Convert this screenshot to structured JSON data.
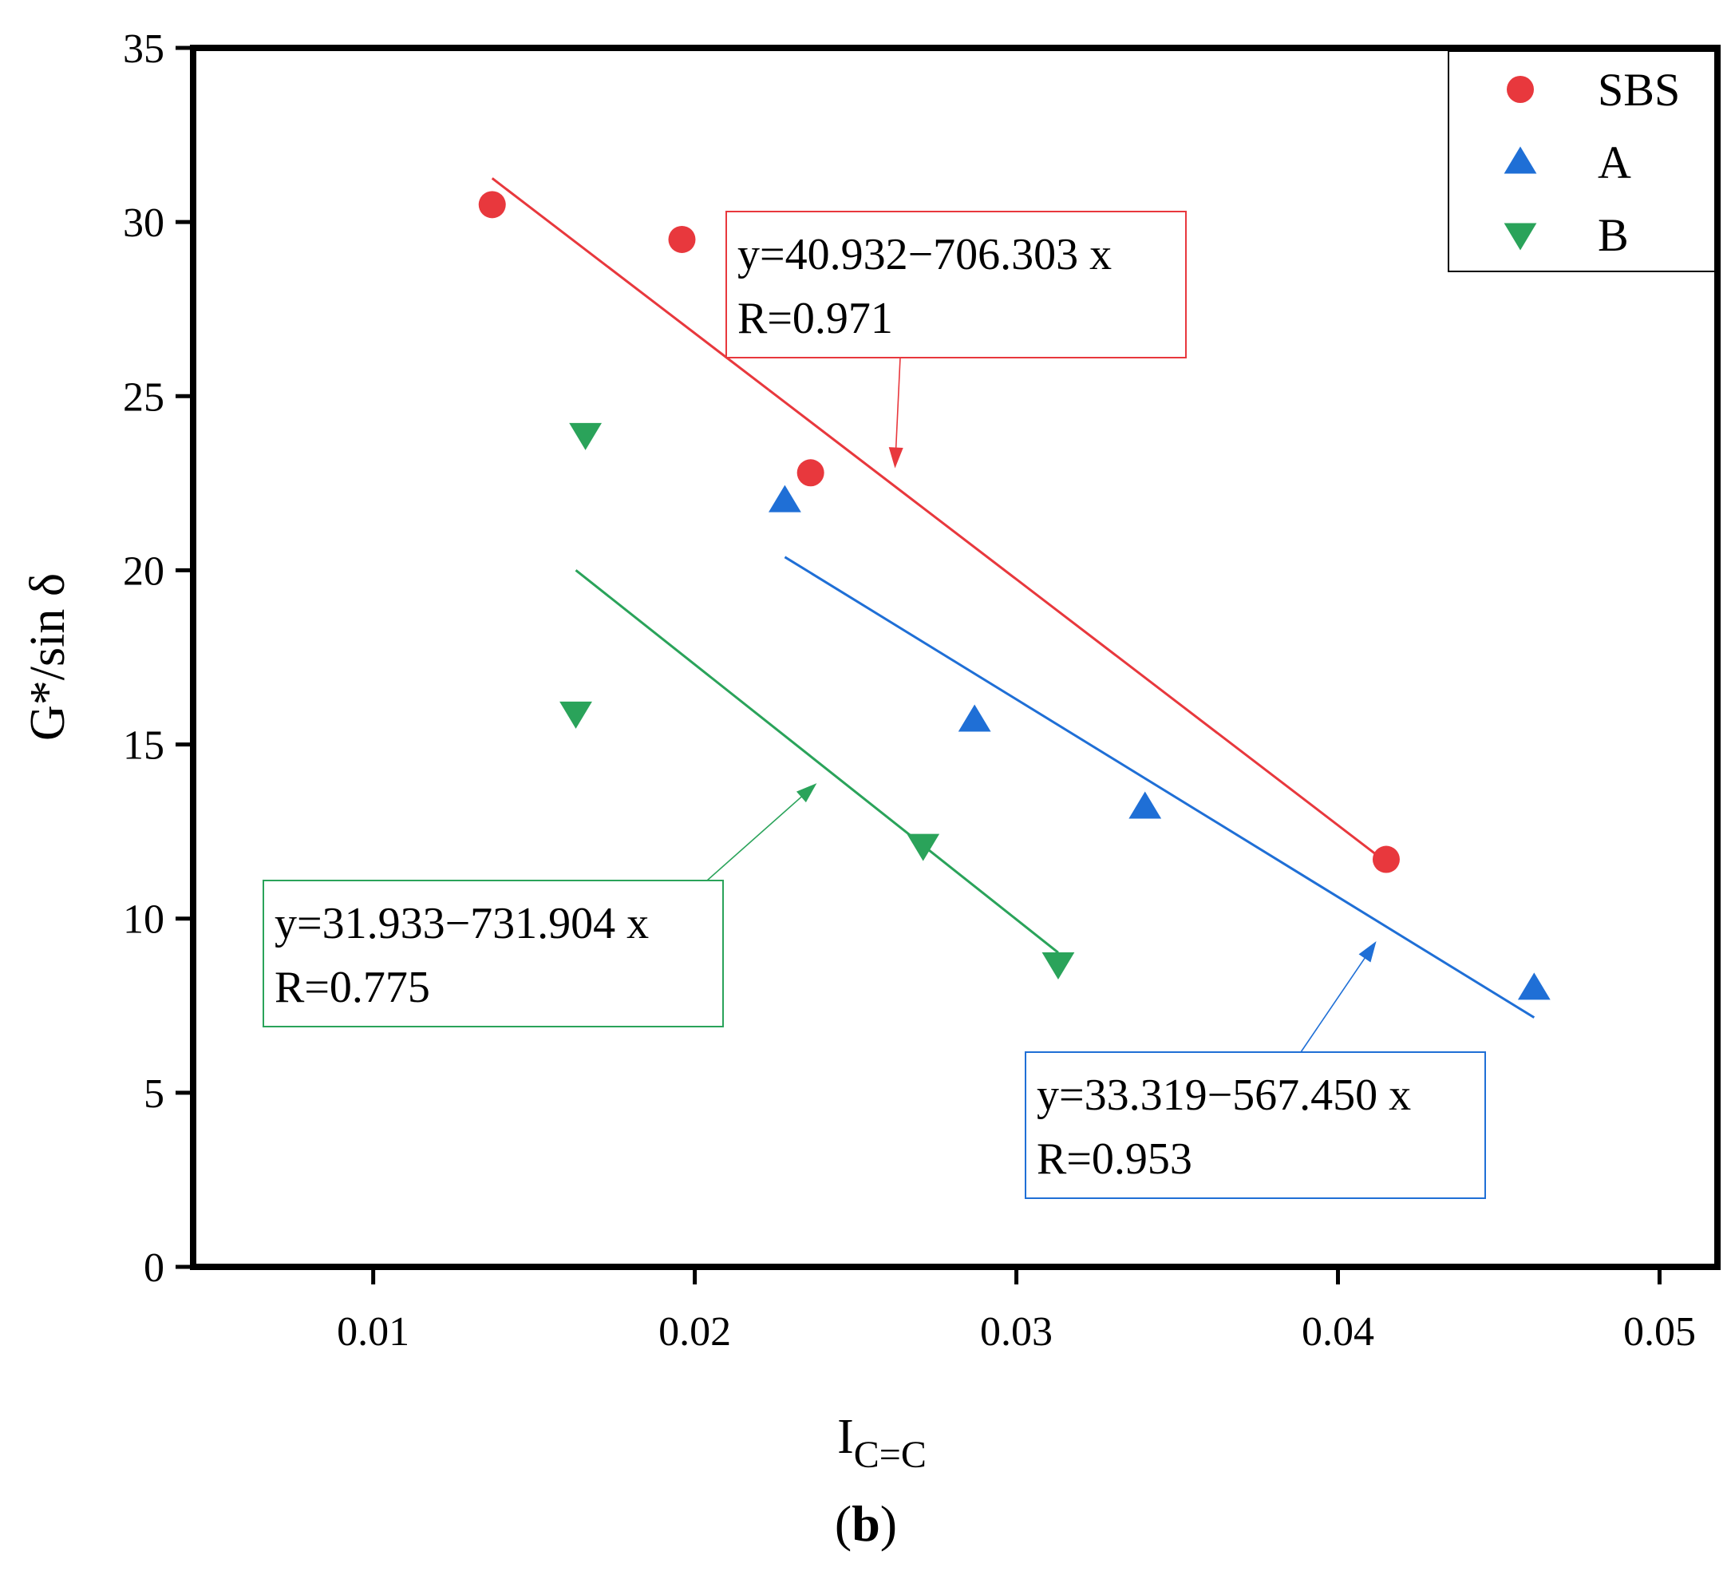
{
  "chart_data": {
    "type": "scatter",
    "title": "",
    "caption": {
      "open": "(",
      "letter": "b",
      "close": ")"
    },
    "xlabel": {
      "main": "I",
      "sub": "C=C"
    },
    "ylabel": "G*/sin δ",
    "xlim": [
      0.0044,
      0.0518
    ],
    "ylim": [
      0,
      35
    ],
    "xticks": [
      0.01,
      0.02,
      0.03,
      0.04,
      0.05
    ],
    "xtick_labels": [
      "0.01",
      "0.02",
      "0.03",
      "0.04",
      "0.05"
    ],
    "yticks": [
      0,
      5,
      10,
      15,
      20,
      25,
      30,
      35
    ],
    "ytick_labels": [
      "0",
      "5",
      "10",
      "15",
      "20",
      "25",
      "30",
      "35"
    ],
    "grid": false,
    "legend_position": "top-right",
    "series": [
      {
        "name": "SBS",
        "marker": "circle",
        "color": "#e8383d",
        "x": [
          0.0137,
          0.0196,
          0.0236,
          0.0415
        ],
        "y": [
          30.5,
          29.5,
          22.8,
          11.7
        ],
        "fit": {
          "x_range": [
            0.0137,
            0.0415
          ],
          "intercept": 40.932,
          "slope": -706.303
        },
        "annotation": {
          "equation": "y=40.932−706.303 x",
          "r": "R=0.971",
          "position": "upper-middle"
        }
      },
      {
        "name": "A",
        "marker": "triangle-up",
        "color": "#1f6fd6",
        "x": [
          0.0228,
          0.0287,
          0.034,
          0.0461
        ],
        "y": [
          22.0,
          15.7,
          13.2,
          8.0
        ],
        "fit": {
          "x_range": [
            0.0228,
            0.0461
          ],
          "intercept": 33.319,
          "slope": -567.45
        },
        "annotation": {
          "equation": "y=33.319−567.450 x",
          "r": "R=0.953",
          "position": "lower-right"
        }
      },
      {
        "name": "B",
        "marker": "triangle-down",
        "color": "#2aa35a",
        "x": [
          0.0166,
          0.0163,
          0.0271,
          0.0313
        ],
        "y": [
          23.9,
          15.9,
          12.1,
          8.7
        ],
        "fit": {
          "x_range": [
            0.0163,
            0.0313
          ],
          "intercept": 31.933,
          "slope": -731.904
        },
        "annotation": {
          "equation": "y=31.933−731.904 x",
          "r": "R=0.775",
          "position": "lower-left"
        }
      }
    ]
  }
}
